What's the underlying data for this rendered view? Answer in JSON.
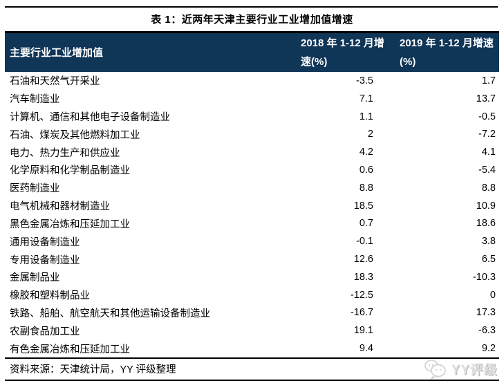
{
  "page": {
    "title": "表 1：近两年天津主要行业工业增加值增速"
  },
  "table": {
    "columns": [
      "主要行业工业增加值",
      "2018 年 1-12 月增速(%)",
      "2019 年 1-12 月增速(%)"
    ],
    "rows": [
      {
        "industry": "石油和天然气开采业",
        "y2018": "-3.5",
        "y2019": "1.7"
      },
      {
        "industry": "汽车制造业",
        "y2018": "7.1",
        "y2019": "13.7"
      },
      {
        "industry": "计算机、通信和其他电子设备制造业",
        "y2018": "1.1",
        "y2019": "-0.5"
      },
      {
        "industry": "石油、煤炭及其他燃料加工业",
        "y2018": "2",
        "y2019": "-7.2"
      },
      {
        "industry": "电力、热力生产和供应业",
        "y2018": "4.2",
        "y2019": "4.1"
      },
      {
        "industry": "化学原料和化学制品制造业",
        "y2018": "0.6",
        "y2019": "-5.4"
      },
      {
        "industry": "医药制造业",
        "y2018": "8.8",
        "y2019": "8.8"
      },
      {
        "industry": "电气机械和器材制造业",
        "y2018": "18.5",
        "y2019": "10.9"
      },
      {
        "industry": "黑色金属冶炼和压延加工业",
        "y2018": "0.7",
        "y2019": "18.6"
      },
      {
        "industry": "通用设备制造业",
        "y2018": "-0.1",
        "y2019": "3.8"
      },
      {
        "industry": "专用设备制造业",
        "y2018": "12.6",
        "y2019": "6.5"
      },
      {
        "industry": "金属制品业",
        "y2018": "18.3",
        "y2019": "-10.3"
      },
      {
        "industry": "橡胶和塑料制品业",
        "y2018": "-12.5",
        "y2019": "0"
      },
      {
        "industry": "铁路、船舶、航空航天和其他运输设备制造业",
        "y2018": "-16.7",
        "y2019": "17.3"
      },
      {
        "industry": "农副食品加工业",
        "y2018": "19.1",
        "y2019": "-6.3"
      },
      {
        "industry": "有色金属冶炼和压延加工业",
        "y2018": "9.4",
        "y2019": "9.2"
      }
    ]
  },
  "footer": {
    "source": "资料来源：天津统计局，YY 评级整理",
    "watermark_label": "YY评级"
  },
  "colors": {
    "header_bg": "#0f3557",
    "rule": "#000000",
    "watermark": "#e0e0e0"
  },
  "chart_data": {
    "type": "table",
    "title": "表 1：近两年天津主要行业工业增加值增速",
    "categories": [
      "石油和天然气开采业",
      "汽车制造业",
      "计算机、通信和其他电子设备制造业",
      "石油、煤炭及其他燃料加工业",
      "电力、热力生产和供应业",
      "化学原料和化学制品制造业",
      "医药制造业",
      "电气机械和器材制造业",
      "黑色金属冶炼和压延加工业",
      "通用设备制造业",
      "专用设备制造业",
      "金属制品业",
      "橡胶和塑料制品业",
      "铁路、船舶、航空航天和其他运输设备制造业",
      "农副食品加工业",
      "有色金属冶炼和压延加工业"
    ],
    "series": [
      {
        "name": "2018 年 1-12 月增速(%)",
        "values": [
          -3.5,
          7.1,
          1.1,
          2,
          4.2,
          0.6,
          8.8,
          18.5,
          0.7,
          -0.1,
          12.6,
          18.3,
          -12.5,
          -16.7,
          19.1,
          9.4
        ]
      },
      {
        "name": "2019 年 1-12 月增速(%)",
        "values": [
          1.7,
          13.7,
          -0.5,
          -7.2,
          4.1,
          -5.4,
          8.8,
          10.9,
          18.6,
          3.8,
          6.5,
          -10.3,
          0,
          17.3,
          -6.3,
          9.2
        ]
      }
    ]
  }
}
